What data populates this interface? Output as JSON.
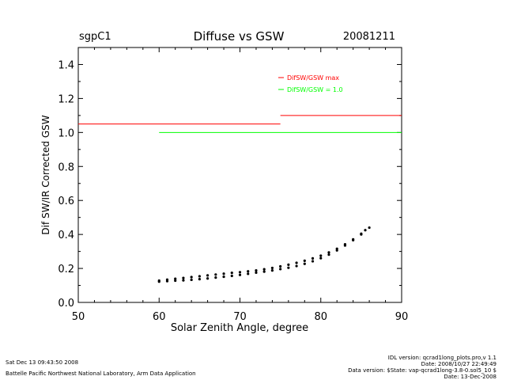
{
  "header": {
    "site": "sgpC1",
    "title": "Diffuse vs GSW",
    "date": "20081211"
  },
  "chart_data": {
    "type": "scatter",
    "title": "Diffuse vs GSW",
    "xlabel": "Solar Zenith Angle, degree",
    "ylabel": "Dif SW/IR Corrected GSW",
    "xlim": [
      50,
      90
    ],
    "ylim": [
      0.0,
      1.5
    ],
    "xticks": [
      50,
      60,
      70,
      80,
      90
    ],
    "xtick_labels": [
      "50",
      "60",
      "70",
      "80",
      "90"
    ],
    "yticks": [
      0.0,
      0.2,
      0.4,
      0.6,
      0.8,
      1.0,
      1.2,
      1.4
    ],
    "ytick_labels": [
      "0.0",
      "0.2",
      "0.4",
      "0.6",
      "0.8",
      "1.0",
      "1.2",
      "1.4"
    ],
    "legend_position": "top-right",
    "series": [
      {
        "name": "DifSW/GSW max",
        "kind": "step",
        "color": "#ff0000",
        "segments": [
          {
            "x": [
              50,
              75
            ],
            "y": 1.05
          },
          {
            "x": [
              75,
              90
            ],
            "y": 1.1
          }
        ]
      },
      {
        "name": "DifSW/GSW = 1.0",
        "kind": "hline",
        "color": "#00ff00",
        "segments": [
          {
            "x": [
              60,
              90
            ],
            "y": 1.0
          }
        ]
      },
      {
        "kind": "scatter",
        "color": "#000000",
        "points": [
          [
            60.0,
            0.122
          ],
          [
            61.0,
            0.125
          ],
          [
            62.0,
            0.128
          ],
          [
            63.0,
            0.13
          ],
          [
            64.0,
            0.133
          ],
          [
            65.0,
            0.137
          ],
          [
            66.0,
            0.141
          ],
          [
            67.0,
            0.146
          ],
          [
            68.0,
            0.151
          ],
          [
            69.0,
            0.156
          ],
          [
            70.0,
            0.162
          ],
          [
            71.0,
            0.168
          ],
          [
            72.0,
            0.175
          ],
          [
            73.0,
            0.181
          ],
          [
            74.0,
            0.188
          ],
          [
            75.0,
            0.196
          ],
          [
            76.0,
            0.204
          ],
          [
            77.0,
            0.214
          ],
          [
            78.0,
            0.227
          ],
          [
            79.0,
            0.242
          ],
          [
            80.0,
            0.26
          ],
          [
            81.0,
            0.281
          ],
          [
            82.0,
            0.306
          ],
          [
            83.0,
            0.335
          ],
          [
            84.0,
            0.366
          ],
          [
            85.0,
            0.4
          ],
          [
            86.0,
            0.44
          ],
          [
            60.0,
            0.128
          ],
          [
            61.0,
            0.134
          ],
          [
            62.0,
            0.139
          ],
          [
            63.0,
            0.144
          ],
          [
            64.0,
            0.149
          ],
          [
            65.0,
            0.154
          ],
          [
            66.0,
            0.159
          ],
          [
            67.0,
            0.164
          ],
          [
            68.0,
            0.169
          ],
          [
            69.0,
            0.174
          ],
          [
            70.0,
            0.178
          ],
          [
            71.0,
            0.183
          ],
          [
            72.0,
            0.188
          ],
          [
            73.0,
            0.195
          ],
          [
            74.0,
            0.203
          ],
          [
            75.0,
            0.212
          ],
          [
            76.0,
            0.222
          ],
          [
            77.0,
            0.233
          ],
          [
            78.0,
            0.245
          ],
          [
            79.0,
            0.259
          ],
          [
            80.0,
            0.275
          ],
          [
            81.0,
            0.294
          ],
          [
            82.0,
            0.316
          ],
          [
            83.0,
            0.342
          ],
          [
            84.0,
            0.371
          ],
          [
            85.0,
            0.404
          ],
          [
            85.5,
            0.425
          ]
        ]
      }
    ]
  },
  "footer": {
    "timestamp": "Sat Dec 13 09:43:50 2008",
    "lab": "Battelle Pacific Northwest National Laboratory, Arm Data Application",
    "idl_version": "IDL version: qcrad1long_plots.pro,v 1.1",
    "idl_date": "Date: 2008/10/27 22:49:49",
    "data_version": "Data version: $State: vap-qcrad1long-3.8-0.sol5_10 $",
    "data_date": "Date: 13-Dec-2008"
  }
}
